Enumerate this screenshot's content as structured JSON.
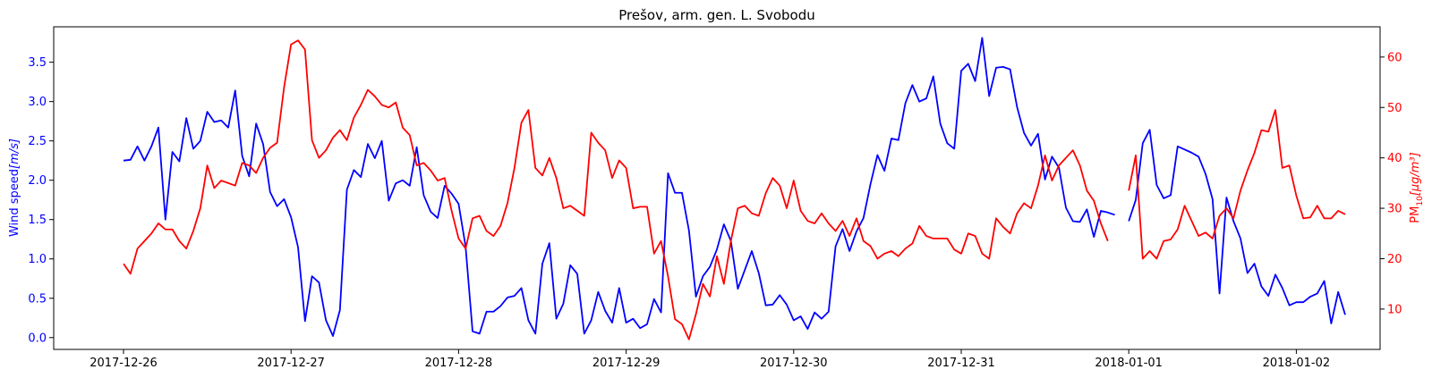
{
  "chart_data": {
    "type": "line",
    "title": "Prešov, arm. gen. L. Svobodu",
    "x_ticks": [
      "2017-12-26",
      "2017-12-27",
      "2017-12-28",
      "2017-12-29",
      "2017-12-30",
      "2017-12-31",
      "2018-01-01",
      "2018-01-02"
    ],
    "xlim": [
      "2017-12-25T14:00",
      "2018-01-02T12:00"
    ],
    "y_left": {
      "label_prefix": "Wind speed",
      "label_unit": "[m/s]",
      "ylim": [
        -0.15,
        3.95
      ],
      "ticks": [
        "0.0",
        "0.5",
        "1.0",
        "1.5",
        "2.0",
        "2.5",
        "3.0",
        "3.5"
      ],
      "color": "#0000ff"
    },
    "y_right": {
      "label_main": "PM",
      "label_sub": "10",
      "label_unit": "[μg/m³]",
      "ylim": [
        2,
        66
      ],
      "ticks": [
        "10",
        "20",
        "30",
        "40",
        "50",
        "60"
      ],
      "color": "#ff0000"
    },
    "series": [
      {
        "axis": "left",
        "color": "#0000ff",
        "start": "2017-12-26T00:00",
        "step_hours": 1,
        "segments": [
          {
            "start_index": 0,
            "values": [
              2.25,
              2.26,
              2.43,
              2.25,
              2.43,
              2.67,
              1.5,
              2.36,
              2.24,
              2.79,
              2.4,
              2.5,
              2.87,
              2.74,
              2.76,
              2.67,
              3.14,
              2.31,
              2.05,
              2.72,
              2.46,
              1.85,
              1.67,
              1.76,
              1.53,
              1.15,
              0.21,
              0.78,
              0.7,
              0.22,
              0.02,
              0.35,
              1.88,
              2.13,
              2.04,
              2.46,
              2.28,
              2.5,
              1.74,
              1.96,
              2.0,
              1.93,
              2.42,
              1.81,
              1.6,
              1.52,
              1.93,
              1.83,
              1.7,
              1.16,
              0.08,
              0.05,
              0.33,
              0.33,
              0.4,
              0.51,
              0.53,
              0.63,
              0.22,
              0.05,
              0.94,
              1.2,
              0.24,
              0.43,
              0.92,
              0.81,
              0.05,
              0.22,
              0.58,
              0.34,
              0.19,
              0.63,
              0.19,
              0.24,
              0.12,
              0.17,
              0.49,
              0.32,
              2.09,
              1.84,
              1.84,
              1.36,
              0.52,
              0.78,
              0.9,
              1.12,
              1.44,
              1.23,
              0.62,
              0.86,
              1.1,
              0.82,
              0.41,
              0.42,
              0.54,
              0.42,
              0.22,
              0.27,
              0.11,
              0.32,
              0.24,
              0.33,
              1.16,
              1.38,
              1.1,
              1.35,
              1.52,
              1.95,
              2.32,
              2.12,
              2.53,
              2.51,
              2.98,
              3.21,
              3.0,
              3.04,
              3.32,
              2.72,
              2.47,
              2.4,
              3.39,
              3.48,
              3.26,
              3.81,
              3.07,
              3.43,
              3.44,
              3.41,
              2.93,
              2.6,
              2.44,
              2.59,
              2.01,
              2.3,
              2.16,
              1.65,
              1.48,
              1.47,
              1.63,
              1.28,
              1.61,
              1.59,
              1.56
            ]
          },
          {
            "start_index": 144,
            "values": [
              1.48,
              1.75,
              2.47,
              2.64,
              1.94,
              1.77,
              1.81,
              2.43,
              2.39,
              2.35,
              2.3,
              2.08,
              1.76,
              0.56,
              1.78,
              1.48,
              1.26,
              0.82,
              0.94,
              0.65,
              0.53,
              0.8,
              0.63,
              0.41,
              0.45,
              0.45,
              0.52,
              0.56,
              0.72,
              0.18,
              0.58,
              0.29
            ]
          }
        ]
      },
      {
        "axis": "right",
        "color": "#ff0000",
        "start": "2017-12-26T00:00",
        "step_hours": 1,
        "segments": [
          {
            "start_index": 0,
            "values": [
              19,
              17,
              22,
              23.5,
              25,
              27,
              25.8,
              25.8,
              23.5,
              22,
              25.5,
              30,
              38.5,
              34,
              35.5,
              35,
              34.5,
              39,
              38.5,
              37,
              40,
              42,
              43,
              54,
              62.5,
              63.3,
              61.5,
              43.5,
              40,
              41.5,
              44,
              45.5,
              43.5,
              48,
              50.5,
              53.5,
              52.2,
              50.5,
              50,
              51,
              46,
              44.5,
              38.5,
              39,
              37.5,
              35.5,
              36,
              29.5,
              24,
              22,
              28,
              28.5,
              25.5,
              24.5,
              26.5,
              31,
              38,
              47,
              49.5,
              38,
              36.5,
              40,
              36,
              30,
              30.5,
              29.5,
              28.5,
              45,
              43,
              41.5,
              36,
              39.5,
              38,
              30,
              30.3,
              30.3,
              21,
              23.5,
              16.5,
              8,
              7,
              4,
              9,
              15,
              12.5,
              20.5,
              15,
              23.5,
              30,
              30.5,
              29,
              28.5,
              33,
              36,
              34.5,
              30,
              35.5,
              29.5,
              27.5,
              27,
              29,
              27,
              25.5,
              27.5,
              24.5,
              28,
              23.5,
              22.5,
              20,
              21,
              21.5,
              20.5,
              22,
              23,
              26.5,
              24.5,
              24,
              24,
              24,
              21.8,
              21,
              25,
              24.5,
              21,
              20,
              28,
              26.3,
              25,
              29,
              31,
              30,
              34.5,
              40.5,
              35.5,
              38.5,
              40,
              41.5,
              38.5,
              33.5,
              31.5,
              27,
              23.5
            ]
          },
          {
            "start_index": 144,
            "values": [
              33.5,
              40.5,
              20,
              21.5,
              20,
              23.5,
              23.8,
              25.8,
              30.5,
              27.5,
              24.5,
              25.2,
              24,
              28.5,
              30,
              28,
              33.5,
              37.5,
              41,
              45.5,
              45.2,
              49.5,
              38,
              38.5,
              32.5,
              28,
              28.2,
              30.5,
              28,
              28,
              29.5,
              28.8
            ]
          }
        ]
      }
    ]
  }
}
